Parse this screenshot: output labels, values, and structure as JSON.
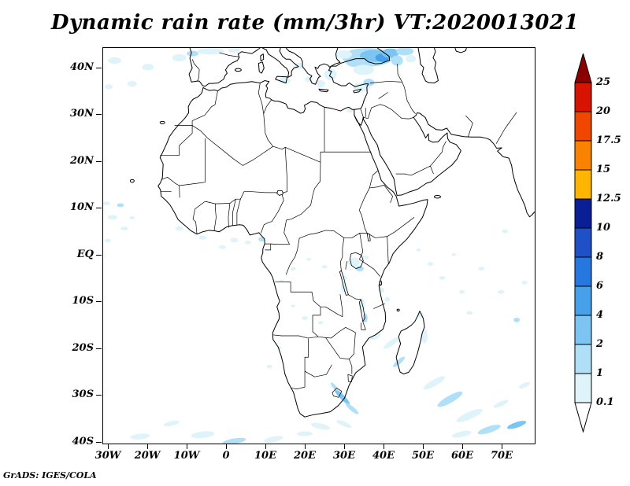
{
  "title": "Dynamic rain rate (mm/3hr) VT:2020013021",
  "attribution": "GrADS: IGES/COLA",
  "axes": {
    "lat_ticks": [
      "40N",
      "30N",
      "20N",
      "10N",
      "EQ",
      "10S",
      "20S",
      "30S",
      "40S"
    ],
    "lat_values": [
      40,
      30,
      20,
      10,
      0,
      -10,
      -20,
      -30,
      -40
    ],
    "lon_ticks": [
      "30W",
      "20W",
      "10W",
      "0",
      "10E",
      "20E",
      "30E",
      "40E",
      "50E",
      "60E",
      "70E"
    ],
    "lon_values": [
      -30,
      -20,
      -10,
      0,
      10,
      20,
      30,
      40,
      50,
      60,
      70
    ]
  },
  "colorbar": {
    "levels": [
      "25",
      "20",
      "17.5",
      "15",
      "12.5",
      "10",
      "8",
      "6",
      "4",
      "2",
      "1",
      "0.1"
    ],
    "colors": [
      "#8b0000",
      "#d81400",
      "#f04600",
      "#fa8200",
      "#ffb400",
      "#0a1e96",
      "#1e50c8",
      "#2678e0",
      "#46a0ea",
      "#7cc4f2",
      "#b0e0f8",
      "#dff3fa",
      "#ffffff"
    ]
  },
  "chart_data": {
    "type": "heatmap",
    "subtype": "filled-contour-weather-map",
    "title": "Dynamic rain rate (mm/3hr) VT:2020013021",
    "variable": "Dynamic rain rate",
    "units": "mm/3hr",
    "valid_time": "2020013021",
    "region": {
      "lon_range": [
        -31.4,
        78.6
      ],
      "lat_range": [
        -40.5,
        44.3
      ],
      "area": "Africa / Middle East"
    },
    "levels": [
      0.1,
      1,
      2,
      4,
      6,
      8,
      10,
      12.5,
      15,
      17.5,
      20,
      25
    ],
    "level_colors_low_to_high": [
      "#ffffff",
      "#dff3fa",
      "#b0e0f8",
      "#7cc4f2",
      "#46a0ea",
      "#2678e0",
      "#1e50c8",
      "#0a1e96",
      "#ffb400",
      "#fa8200",
      "#f04600",
      "#d81400",
      "#8b0000"
    ],
    "legend_position": "right",
    "grid": false,
    "x_ticks": [
      "30W",
      "20W",
      "10W",
      "0",
      "10E",
      "20E",
      "30E",
      "40E",
      "50E",
      "60E",
      "70E"
    ],
    "y_ticks": [
      "40N",
      "30N",
      "20N",
      "10N",
      "EQ",
      "10S",
      "20S",
      "30S",
      "40S"
    ],
    "rain_areas": [
      {
        "area": "Eastern Turkey / Black Sea",
        "approx_lon": [
          29,
          47
        ],
        "approx_lat": [
          38,
          44
        ],
        "intensity_mm_3hr": "1-6"
      },
      {
        "area": "Aegean Sea / Greece / central Mediterranean",
        "approx_lon": [
          13,
          28
        ],
        "approx_lat": [
          36,
          41
        ],
        "intensity_mm_3hr": "0.1-1"
      },
      {
        "area": "Cyprus / Levant coast",
        "approx_lon": [
          32,
          37
        ],
        "approx_lat": [
          34,
          38
        ],
        "intensity_mm_3hr": "0.1-2"
      },
      {
        "area": "Northern Iberia / Bay of Biscay",
        "approx_lon": [
          -9,
          3
        ],
        "approx_lat": [
          42,
          44
        ],
        "intensity_mm_3hr": "0.1-2"
      },
      {
        "area": "North Atlantic off Iberia",
        "approx_lon": [
          -31,
          -10
        ],
        "approx_lat": [
          35,
          43
        ],
        "intensity_mm_3hr": "0.1-1"
      },
      {
        "area": "Tropical Atlantic ITCZ",
        "approx_lon": [
          -31,
          -22
        ],
        "approx_lat": [
          2,
          12
        ],
        "intensity_mm_3hr": "0.1-2"
      },
      {
        "area": "Gulf of Guinea",
        "approx_lon": [
          -13,
          10
        ],
        "approx_lat": [
          1,
          6
        ],
        "intensity_mm_3hr": "0.1-2"
      },
      {
        "area": "Lake Victoria / East African lakes",
        "approx_lon": [
          29,
          36
        ],
        "approx_lat": [
          -15,
          0
        ],
        "intensity_mm_3hr": "0.1-2"
      },
      {
        "area": "Mozambique Channel / Madagascar",
        "approx_lon": [
          36,
          52
        ],
        "approx_lat": [
          -25,
          -12
        ],
        "intensity_mm_3hr": "0.1-2"
      },
      {
        "area": "South African east coast / Agulhas",
        "approx_lon": [
          25,
          36
        ],
        "approx_lat": [
          -37,
          -27
        ],
        "intensity_mm_3hr": "1-4"
      },
      {
        "area": "Southern Indian Ocean storm track",
        "approx_lon": [
          48,
          78
        ],
        "approx_lat": [
          -40,
          -25
        ],
        "intensity_mm_3hr": "0.1-2"
      },
      {
        "area": "South Atlantic near 40S",
        "approx_lon": [
          -25,
          22
        ],
        "approx_lat": [
          -41,
          -34
        ],
        "intensity_mm_3hr": "0.1-2"
      }
    ]
  }
}
